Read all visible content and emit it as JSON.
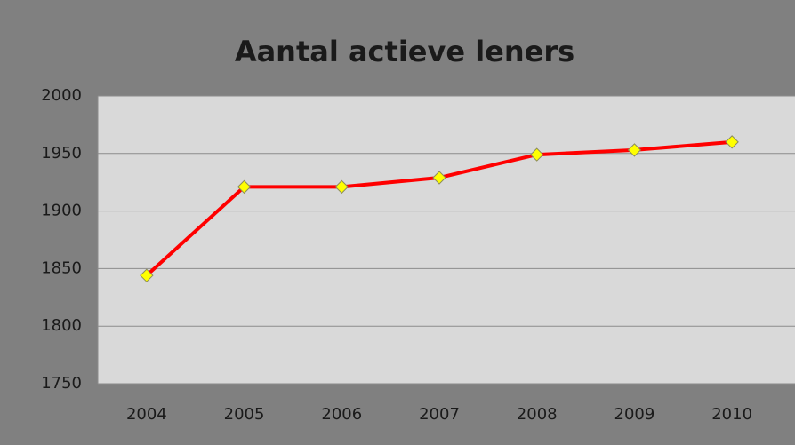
{
  "chart_data": {
    "type": "line",
    "title": "Aantal actieve leners",
    "categories": [
      "2004",
      "2005",
      "2006",
      "2007",
      "2008",
      "2009",
      "2010"
    ],
    "series": [
      {
        "name": "Aantal actieve leners",
        "color": "#ff0000",
        "marker_color": "#ffff00",
        "values": [
          1844,
          1921,
          1921,
          1929,
          1949,
          1953,
          1960
        ]
      }
    ],
    "ylim": [
      1750,
      2000
    ],
    "yticks": [
      1750,
      1800,
      1850,
      1900,
      1950,
      2000
    ],
    "grid": true,
    "legend": false
  }
}
